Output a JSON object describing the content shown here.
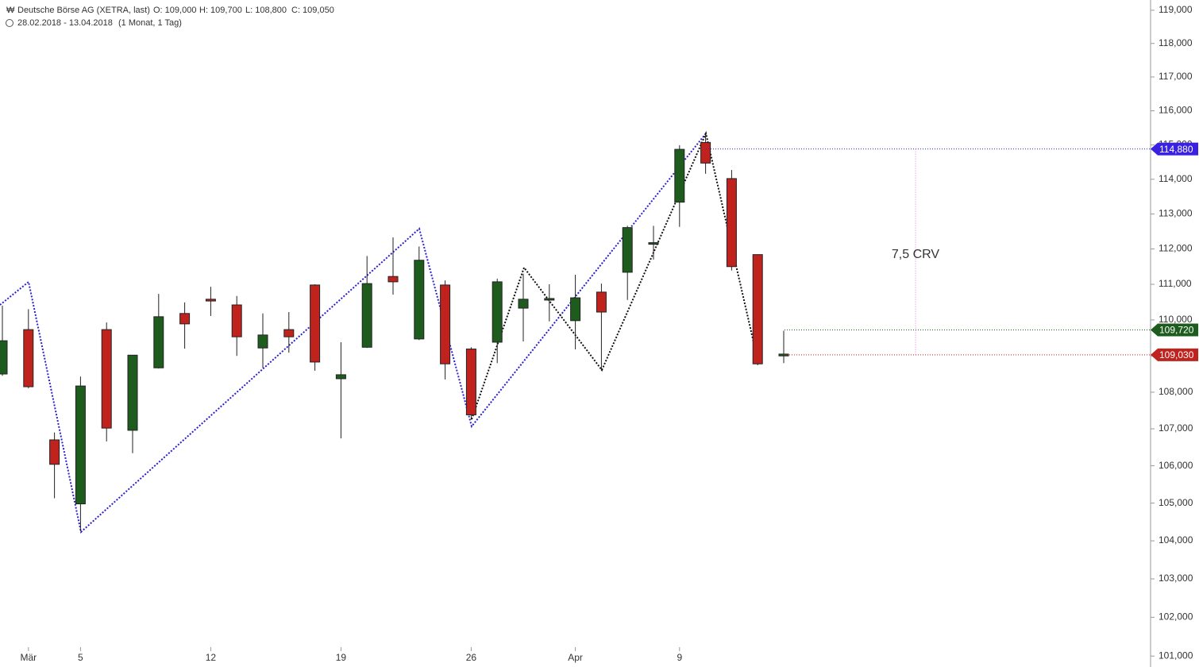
{
  "chart_data": {
    "type": "candlestick",
    "title": "Deutsche Börse AG (XETRA, last)",
    "header_values": [
      "O: 109,000",
      "H: 109,700",
      "L: 108,800",
      "C: 109,050"
    ],
    "subtitle": "28.02.2018 - 13.04.2018",
    "period": "(1 Monat, 1 Tag)",
    "categories": [
      null,
      "Mär",
      null,
      "5",
      null,
      null,
      null,
      null,
      "12",
      null,
      null,
      null,
      null,
      "19",
      null,
      null,
      null,
      null,
      "26",
      null,
      null,
      null,
      "Apr",
      null,
      null,
      null,
      "9",
      null,
      null,
      null,
      null
    ],
    "open": [
      108.5,
      109.73,
      106.7,
      104.98,
      109.73,
      106.96,
      108.67,
      110.18,
      110.58,
      110.42,
      109.22,
      109.73,
      110.98,
      108.37,
      109.24,
      111.22,
      109.47,
      110.98,
      109.19,
      109.38,
      110.33,
      110.56,
      109.98,
      110.78,
      111.34,
      112.14,
      113.34,
      115.07,
      114.02,
      111.84,
      109.0
    ],
    "high": [
      110.4,
      110.3,
      106.9,
      108.43,
      109.93,
      109.02,
      110.73,
      110.49,
      110.93,
      110.67,
      110.18,
      110.22,
      111.0,
      109.38,
      111.8,
      112.33,
      112.07,
      111.11,
      109.24,
      111.16,
      111.3,
      111.0,
      111.27,
      111.02,
      112.66,
      112.66,
      114.99,
      115.3,
      114.27,
      111.84,
      109.7
    ],
    "low": [
      108.45,
      108.11,
      105.13,
      104.25,
      106.66,
      106.34,
      108.65,
      109.2,
      110.11,
      109.0,
      108.67,
      109.09,
      108.59,
      106.74,
      109.22,
      110.71,
      109.44,
      108.35,
      107.25,
      108.8,
      109.4,
      109.96,
      109.18,
      108.59,
      110.56,
      111.7,
      112.63,
      114.16,
      111.39,
      108.74,
      108.8
    ],
    "close": [
      109.42,
      108.15,
      106.04,
      108.17,
      107.02,
      109.02,
      110.09,
      109.89,
      110.53,
      109.53,
      109.58,
      109.53,
      108.83,
      108.48,
      111.02,
      111.07,
      111.68,
      108.78,
      107.38,
      111.07,
      110.58,
      110.6,
      110.62,
      110.22,
      112.61,
      112.18,
      114.87,
      114.47,
      111.5,
      108.78,
      109.05
    ],
    "up_color": "#1e5c1e",
    "down_color": "#c0231e",
    "log_scale": true,
    "ylim": [
      100.72,
      119.31
    ],
    "yticks": [
      {
        "value": 101,
        "label": "101,000"
      },
      {
        "value": 102,
        "label": "102,000"
      },
      {
        "value": 103,
        "label": "103,000"
      },
      {
        "value": 104,
        "label": "104,000"
      },
      {
        "value": 105,
        "label": "105,000"
      },
      {
        "value": 106,
        "label": "106,000"
      },
      {
        "value": 107,
        "label": "107,000"
      },
      {
        "value": 108,
        "label": "108,000"
      },
      {
        "value": 109,
        "label": "109,000"
      },
      {
        "value": 110,
        "label": "110,000"
      },
      {
        "value": 111,
        "label": "111,000"
      },
      {
        "value": 112,
        "label": "112,000"
      },
      {
        "value": 113,
        "label": "113,000"
      },
      {
        "value": 114,
        "label": "114,000"
      },
      {
        "value": 115,
        "label": "115,000"
      },
      {
        "value": 116,
        "label": "116,000"
      },
      {
        "value": 117,
        "label": "117,000"
      },
      {
        "value": 118,
        "label": "118,000"
      },
      {
        "value": 119,
        "label": "119,000"
      }
    ],
    "price_lines": [
      {
        "value": 114.88,
        "label": "114,880",
        "color": "#3a20e0"
      },
      {
        "value": 109.72,
        "label": "109,720",
        "color": "#1e5c1e"
      },
      {
        "value": 109.03,
        "label": "109,030",
        "color": "#c0231e"
      }
    ],
    "annotation": "7,5 CRV"
  }
}
